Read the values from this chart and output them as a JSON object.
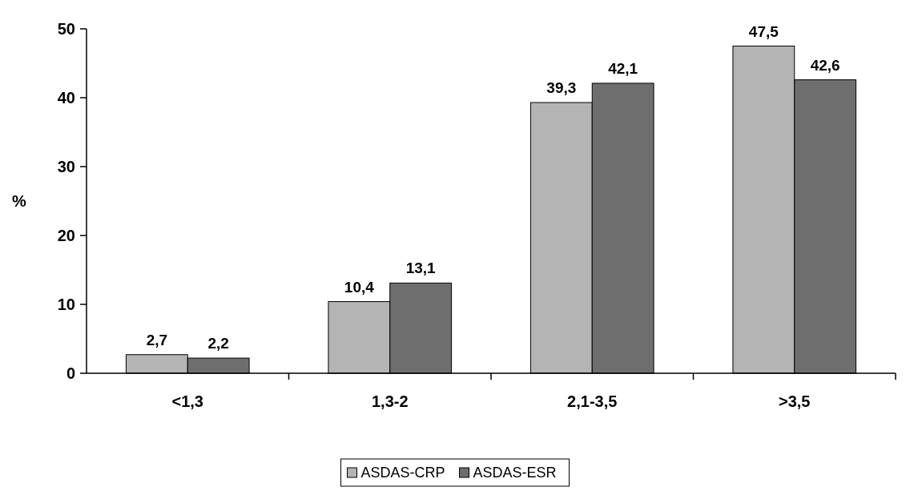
{
  "chart_data": {
    "type": "bar",
    "ylabel": "%",
    "categories": [
      "<1,3",
      "1,3-2",
      "2,1-3,5",
      ">3,5"
    ],
    "series": [
      {
        "name": "ASDAS-CRP",
        "color": "#b4b4b4",
        "values": [
          2.7,
          10.4,
          39.3,
          47.5
        ],
        "value_labels": [
          "2,7",
          "10,4",
          "39,3",
          "47,5"
        ]
      },
      {
        "name": "ASDAS-ESR",
        "color": "#6e6e6e",
        "values": [
          2.2,
          13.1,
          42.1,
          42.6
        ],
        "value_labels": [
          "2,2",
          "13,1",
          "42,1",
          "42,6"
        ]
      }
    ],
    "ylim": [
      0,
      50
    ],
    "yticks": [
      0,
      10,
      20,
      30,
      40,
      50
    ],
    "grid": false,
    "legend": "bottom"
  }
}
